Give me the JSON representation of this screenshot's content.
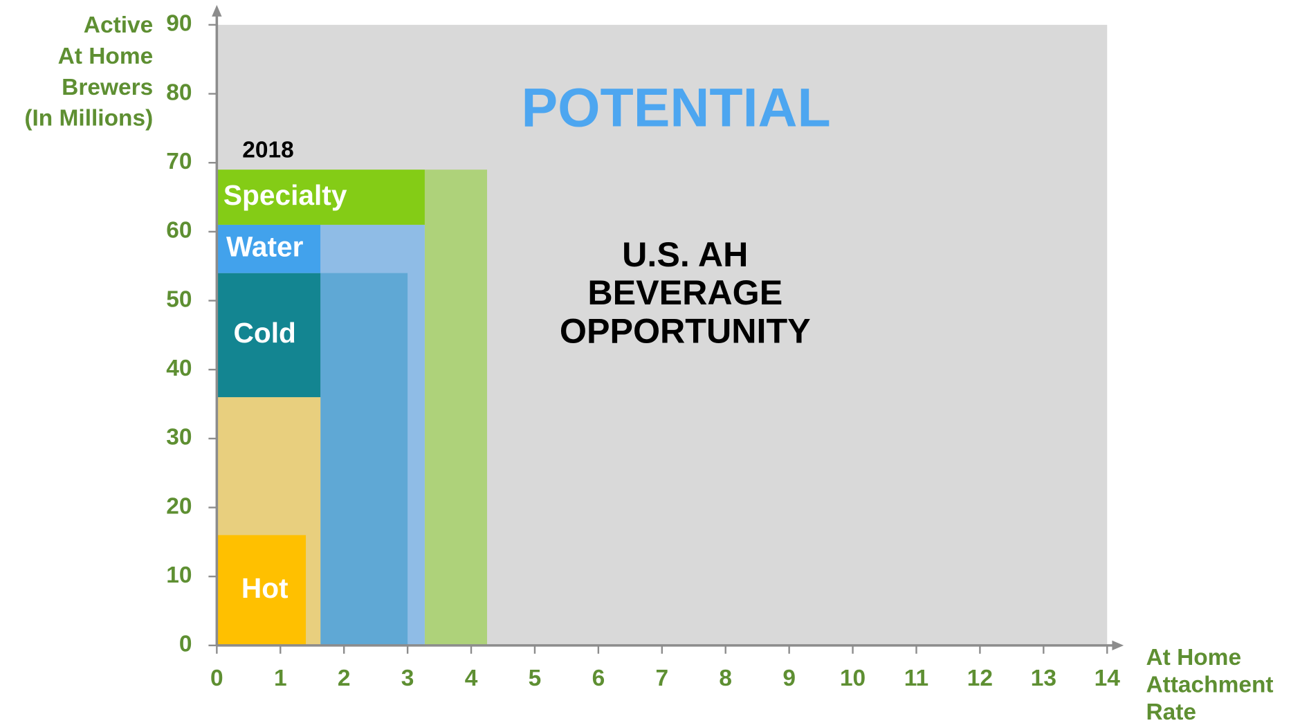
{
  "chart_data": {
    "type": "rect",
    "title": "POTENTIAL",
    "annotation": [
      "U.S. AH",
      "BEVERAGE",
      "OPPORTUNITY"
    ],
    "year_label": "2018",
    "ylabel": [
      "Active",
      "At Home",
      "Brewers",
      "(In Millions)"
    ],
    "xlabel": [
      "At Home",
      "Attachment",
      "Rate"
    ],
    "xlim": [
      0,
      14
    ],
    "ylim": [
      0,
      90
    ],
    "xticks": [
      0,
      1,
      2,
      3,
      4,
      5,
      6,
      7,
      8,
      9,
      10,
      11,
      12,
      13,
      14
    ],
    "yticks": [
      0,
      10,
      20,
      30,
      40,
      50,
      60,
      70,
      80,
      90
    ],
    "rects": [
      {
        "color": "#aed27a",
        "x": [
          3.27,
          4.25
        ],
        "y": [
          0,
          69
        ]
      },
      {
        "color": "#8fbce6",
        "x": [
          1.63,
          3.27
        ],
        "y": [
          0,
          61
        ]
      },
      {
        "color": "#5fa8d5",
        "x": [
          1.63,
          3.0
        ],
        "y": [
          0,
          54
        ]
      },
      {
        "color": "#e8cf7e",
        "x": [
          0,
          1.63
        ],
        "y": [
          0,
          36
        ]
      },
      {
        "name": "Hot",
        "color": "#ffc000",
        "x": [
          0,
          1.4
        ],
        "y": [
          0,
          16
        ]
      },
      {
        "name": "Cold",
        "color": "#138591",
        "x": [
          0,
          1.63
        ],
        "y": [
          36,
          54
        ]
      },
      {
        "name": "Water",
        "color": "#42a2ec",
        "x": [
          0,
          1.63
        ],
        "y": [
          54,
          61
        ]
      },
      {
        "name": "Specialty",
        "color": "#84cc16",
        "x": [
          0,
          3.27
        ],
        "y": [
          61,
          69
        ]
      }
    ]
  }
}
